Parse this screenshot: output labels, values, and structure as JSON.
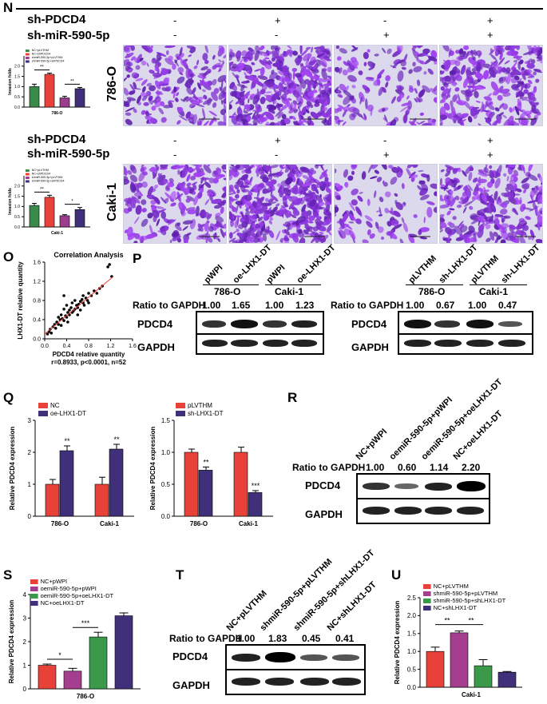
{
  "panelN": {
    "letter": "N",
    "row_labels": [
      "sh-PDCD4",
      "sh-miR-590-5p"
    ],
    "signs_top": [
      [
        "-",
        "-"
      ],
      [
        "+",
        "-"
      ],
      [
        "-",
        "+"
      ],
      [
        "+",
        "+"
      ]
    ],
    "cell_786": "786-O",
    "cell_caki": "Caki-1"
  },
  "panelO": {
    "letter": "O"
  },
  "panelP": {
    "letter": "P",
    "left": {
      "lanes": [
        "pWPI",
        "oe-LHX1-DT",
        "pWPI",
        "oe-LHX1-DT"
      ],
      "groups": [
        "786-O",
        "Caki-1"
      ],
      "ratio_label": "Ratio to GAPDH",
      "ratios": [
        "1.00",
        "1.65",
        "1.00",
        "1.23"
      ],
      "rows": [
        "PDCD4",
        "GAPDH"
      ]
    },
    "right": {
      "lanes": [
        "pLVTHM",
        "sh-LHX1-DT",
        "pLVTHM",
        "sh-LHX1-DT"
      ],
      "groups": [
        "786-O",
        "Caki-1"
      ],
      "ratio_label": "Ratio to GAPDH",
      "ratios": [
        "1.00",
        "0.67",
        "1.00",
        "0.47"
      ],
      "rows": [
        "PDCD4",
        "GAPDH"
      ]
    }
  },
  "panelQ": {
    "letter": "Q"
  },
  "panelR": {
    "letter": "R",
    "lanes": [
      "NC+pWPI",
      "oemiR-590-5p+pWPI",
      "oemiR-590-5p+oeLHX1-DT",
      "NC+oeLHX1-DT"
    ],
    "ratio_label": "Ratio to GAPDH",
    "ratios": [
      "1.00",
      "0.60",
      "1.14",
      "2.20"
    ],
    "rows": [
      "PDCD4",
      "GAPDH"
    ]
  },
  "panelS": {
    "letter": "S"
  },
  "panelT": {
    "letter": "T",
    "lanes": [
      "NC+pLVTHM",
      "shmiR-590-5p+pLVTHM",
      "shmiR-590-5p+shLHX1-DT",
      "NC+shLHX1-DT"
    ],
    "ratio_label": "Ratio to GAPDH",
    "ratios": [
      "1.00",
      "1.83",
      "0.45",
      "0.41"
    ],
    "rows": [
      "PDCD4",
      "GAPDH"
    ]
  },
  "panelU": {
    "letter": "U"
  },
  "chart_data": [
    {
      "id": "N1",
      "type": "bar",
      "categories": [
        "NC+pLVTHM",
        "NC+shPDCD4",
        "shmiR-590-5p+pLVTHM",
        "shmiR-590-5p+shPDCD4"
      ],
      "values": [
        1.0,
        1.6,
        0.45,
        0.9
      ],
      "errors": [
        0.12,
        0.06,
        0.08,
        0.06
      ],
      "colors": [
        "#3a8a4a",
        "#e8413a",
        "#9b3c8c",
        "#40307a"
      ],
      "ylabel": "Invasion folds",
      "xlabel": "786-O",
      "ylim": [
        0,
        2.5
      ],
      "yticks": [
        0.0,
        0.5,
        1.0,
        1.5,
        2.0
      ],
      "legend": [
        "NC+pLVTHM",
        "NC+shPDCD4",
        "shmiR-590-5p+pLVTHM",
        "shmiR-590-5p+shPDCD4"
      ],
      "sig": [
        {
          "from": 0,
          "to": 1,
          "label": "**"
        },
        {
          "from": 2,
          "to": 3,
          "label": "**"
        }
      ]
    },
    {
      "id": "N2",
      "type": "bar",
      "categories": [
        "NC+pLVTHM",
        "NC+shPDCD4",
        "shmiR-590-5p+pLVTHM",
        "shmiR-590-5p+shPDCD4"
      ],
      "values": [
        1.05,
        1.45,
        0.55,
        0.85
      ],
      "errors": [
        0.1,
        0.1,
        0.05,
        0.1
      ],
      "colors": [
        "#3a8a4a",
        "#e8413a",
        "#9b3c8c",
        "#40307a"
      ],
      "ylabel": "Invasion folds",
      "xlabel": "Caki-1",
      "ylim": [
        0,
        2.5
      ],
      "yticks": [
        0.0,
        0.5,
        1.0,
        1.5,
        2.0
      ],
      "legend": [
        "NC+pLVTHM",
        "NC+shPDCD4",
        "shmiR-590-5p+pLVTHM",
        "shmiR-590-5p+shPDCD4"
      ],
      "sig": [
        {
          "from": 0,
          "to": 1,
          "label": "**"
        },
        {
          "from": 2,
          "to": 3,
          "label": "*"
        }
      ]
    },
    {
      "id": "O",
      "type": "scatter",
      "title": "Correlation Analysis",
      "xlabel": "PDCD4 relative quantity",
      "ylabel": "LHX1-DT relative quantity",
      "stat": "r=0.8933, p<0.0001, n=52",
      "xlim": [
        0,
        1.6
      ],
      "ylim": [
        0,
        1.6
      ],
      "xticks": [
        0.0,
        0.4,
        0.8,
        1.2,
        1.6
      ],
      "yticks": [
        0.0,
        0.4,
        0.8,
        1.2,
        1.6
      ],
      "x": [
        0.05,
        0.08,
        0.1,
        0.12,
        0.15,
        0.18,
        0.2,
        0.22,
        0.25,
        0.25,
        0.28,
        0.3,
        0.3,
        0.32,
        0.35,
        0.35,
        0.38,
        0.4,
        0.4,
        0.42,
        0.42,
        0.45,
        0.45,
        0.48,
        0.5,
        0.5,
        0.52,
        0.55,
        0.55,
        0.58,
        0.6,
        0.6,
        0.62,
        0.65,
        0.65,
        0.68,
        0.7,
        0.7,
        0.72,
        0.75,
        0.78,
        0.8,
        0.8,
        0.85,
        0.9,
        0.95,
        1.0,
        1.05,
        1.15,
        1.18,
        1.22,
        0.35
      ],
      "y": [
        0.1,
        0.15,
        0.2,
        0.12,
        0.25,
        0.3,
        0.22,
        0.35,
        0.3,
        0.45,
        0.4,
        0.28,
        0.5,
        0.42,
        0.38,
        0.62,
        0.48,
        0.45,
        0.7,
        0.55,
        0.35,
        0.6,
        0.5,
        0.65,
        0.55,
        0.75,
        0.58,
        0.62,
        0.8,
        0.7,
        0.65,
        0.5,
        0.72,
        0.78,
        0.6,
        0.82,
        0.75,
        0.9,
        0.7,
        0.85,
        0.8,
        0.95,
        0.75,
        0.9,
        1.0,
        0.95,
        1.05,
        1.1,
        1.5,
        1.55,
        1.3,
        0.9
      ],
      "fit": {
        "x": [
          0.0,
          1.25
        ],
        "y": [
          0.1,
          1.3
        ]
      }
    },
    {
      "id": "Q1",
      "type": "bar",
      "categories": [
        "786-O",
        "Caki-1"
      ],
      "series": [
        {
          "name": "NC",
          "values": [
            1.0,
            1.0
          ],
          "errors": [
            0.15,
            0.22
          ],
          "color": "#e8413a"
        },
        {
          "name": "oe-LHX1-DT",
          "values": [
            2.05,
            2.1
          ],
          "errors": [
            0.15,
            0.15
          ],
          "color": "#40307a"
        }
      ],
      "ylabel": "Relative PDCD4 expression",
      "ylim": [
        0,
        3
      ],
      "yticks": [
        0,
        1,
        2,
        3
      ],
      "sig": [
        "**",
        "**"
      ]
    },
    {
      "id": "Q2",
      "type": "bar",
      "categories": [
        "786-O",
        "Caki-1"
      ],
      "series": [
        {
          "name": "pLVTHM",
          "values": [
            1.0,
            1.0
          ],
          "errors": [
            0.05,
            0.08
          ],
          "color": "#e8413a"
        },
        {
          "name": "sh-LHX1-DT",
          "values": [
            0.72,
            0.37
          ],
          "errors": [
            0.05,
            0.03
          ],
          "color": "#40307a"
        }
      ],
      "ylabel": "Relative PDCD4 expression",
      "ylim": [
        0,
        1.5
      ],
      "yticks": [
        0.0,
        0.5,
        1.0,
        1.5
      ],
      "sig": [
        "**",
        "***"
      ]
    },
    {
      "id": "S",
      "type": "bar",
      "categories": [
        "NC+pWPI",
        "oemiR-590-5p+pWPI",
        "oemiR-590-5p+oeLHX1-DT",
        "NC+oeLHX1-DT"
      ],
      "values": [
        1.0,
        0.75,
        2.2,
        3.1
      ],
      "errors": [
        0.05,
        0.12,
        0.2,
        0.12
      ],
      "colors": [
        "#e8413a",
        "#a53e8f",
        "#3a9a4a",
        "#40307a"
      ],
      "ylabel": "Relative PDCD4 expression",
      "xlabel": "786-O",
      "ylim": [
        0,
        4
      ],
      "yticks": [
        0,
        1,
        2,
        3,
        4
      ],
      "legend": [
        "NC+pWPI",
        "oemiR-590-5p+pWPI",
        "oemiR-590-5p+oeLHX1-DT",
        "NC+oeLHX1-DT"
      ],
      "sig": [
        {
          "from": 0,
          "to": 1,
          "label": "*"
        },
        {
          "from": 1,
          "to": 2,
          "label": "***"
        }
      ]
    },
    {
      "id": "U",
      "type": "bar",
      "categories": [
        "NC+pLVTHM",
        "shmiR-590-5p+pLVTHM",
        "shmiR-590-5p+shLHX1-DT",
        "NC+shLHX1-DT"
      ],
      "values": [
        1.0,
        1.52,
        0.6,
        0.42
      ],
      "errors": [
        0.12,
        0.05,
        0.17,
        0.02
      ],
      "colors": [
        "#e8413a",
        "#a53e8f",
        "#3a9a4a",
        "#40307a"
      ],
      "ylabel": "Relative PDCD4 expression",
      "xlabel": "Caki-1",
      "ylim": [
        0,
        2.5
      ],
      "yticks": [
        0.0,
        0.5,
        1.0,
        1.5,
        2.0,
        2.5
      ],
      "legend": [
        "NC+pLVTHM",
        "shmiR-590-5p+pLVTHM",
        "shmiR-590-5p+shLHX1-DT",
        "NC+shLHX1-DT"
      ],
      "sig": [
        {
          "from": 0,
          "to": 1,
          "label": "**"
        },
        {
          "from": 1,
          "to": 2,
          "label": "**"
        }
      ]
    }
  ]
}
